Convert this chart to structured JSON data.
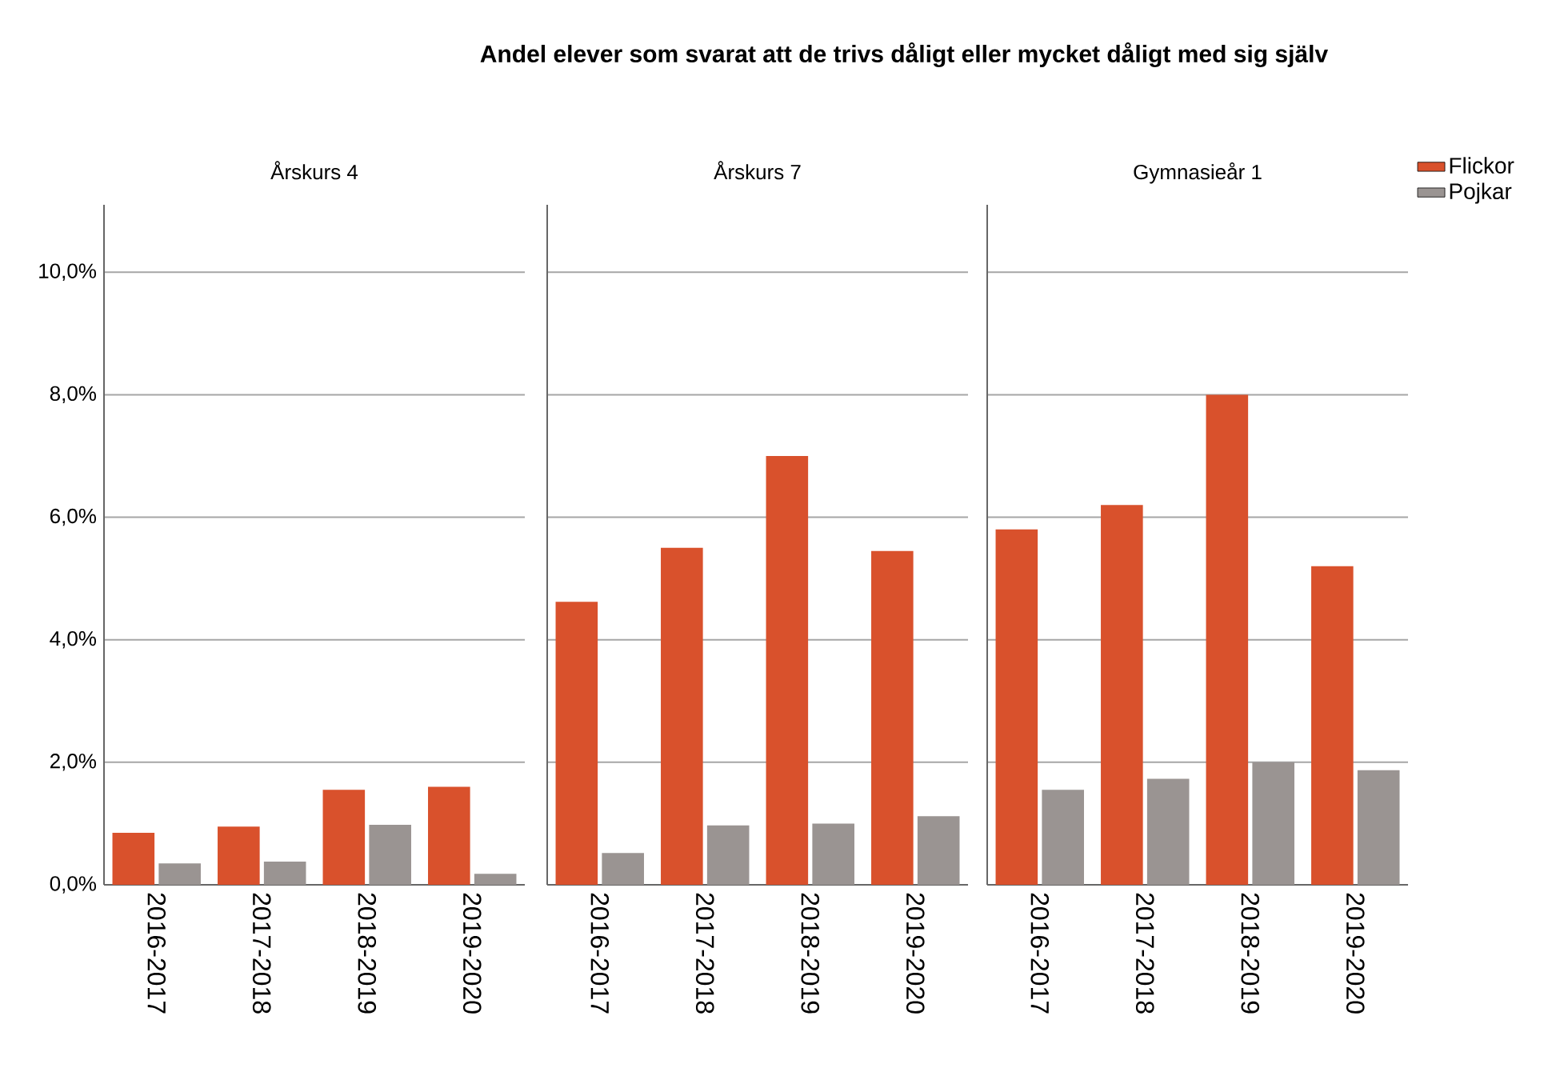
{
  "chart_data": [
    {
      "type": "bar",
      "title": "Årskurs 4",
      "annotations": [
        "Andel elever som svarat att de trivs dåligt eller mycket dåligt med sig själv"
      ],
      "categories": [
        "2016-2017",
        "2017-2018",
        "2018-2019",
        "2019-2020"
      ],
      "series": [
        {
          "color": "#d9512c",
          "values": [
            0.85,
            0.95,
            1.55,
            1.6
          ]
        },
        {
          "color": "#9a9492",
          "values": [
            0.35,
            0.38,
            0.98,
            0.18
          ]
        }
      ],
      "ylim": [
        0,
        11.1
      ],
      "yticks": [
        {
          "value": 0,
          "label": "0,0%"
        },
        {
          "value": 2,
          "label": "2,0%"
        },
        {
          "value": 4,
          "label": "4,0%"
        },
        {
          "value": 6,
          "label": "6,0%"
        },
        {
          "value": 8,
          "label": "8,0%"
        },
        {
          "value": 10,
          "label": "10,0%"
        }
      ],
      "grid": "y"
    },
    {
      "type": "bar",
      "title": "Årskurs 7",
      "categories": [
        "2016-2017",
        "2017-2018",
        "2018-2019",
        "2019-2020"
      ],
      "series": [
        {
          "color": "#d9512c",
          "values": [
            4.62,
            5.5,
            7.0,
            5.45
          ]
        },
        {
          "color": "#9a9492",
          "values": [
            0.52,
            0.97,
            1.0,
            1.12
          ]
        }
      ],
      "ylim": [
        0,
        11.1
      ],
      "yticks": [
        {
          "value": 0,
          "label": null
        },
        {
          "value": 2,
          "label": null
        },
        {
          "value": 4,
          "label": null
        },
        {
          "value": 6,
          "label": null
        },
        {
          "value": 8,
          "label": null
        },
        {
          "value": 10,
          "label": null
        }
      ],
      "grid": "y",
      "tick_labels": "x"
    },
    {
      "type": "bar",
      "title": "Gymnasieår 1",
      "categories": [
        "2016-2017",
        "2017-2018",
        "2018-2019",
        "2019-2020"
      ],
      "series": [
        {
          "name": "Flickor",
          "color": "#d9512c",
          "values": [
            5.8,
            6.2,
            8.0,
            5.2
          ]
        },
        {
          "name": "Pojkar",
          "color": "#9a9492",
          "values": [
            1.55,
            1.73,
            2.0,
            1.87
          ]
        }
      ],
      "ylim": [
        0,
        11.1
      ],
      "yticks": [
        {
          "value": 0,
          "label": null
        },
        {
          "value": 2,
          "label": null
        },
        {
          "value": 4,
          "label": null
        },
        {
          "value": 6,
          "label": null
        },
        {
          "value": 8,
          "label": null
        },
        {
          "value": 10,
          "label": null
        }
      ],
      "grid": "y",
      "tick_labels": "x",
      "legend": "top right"
    }
  ]
}
